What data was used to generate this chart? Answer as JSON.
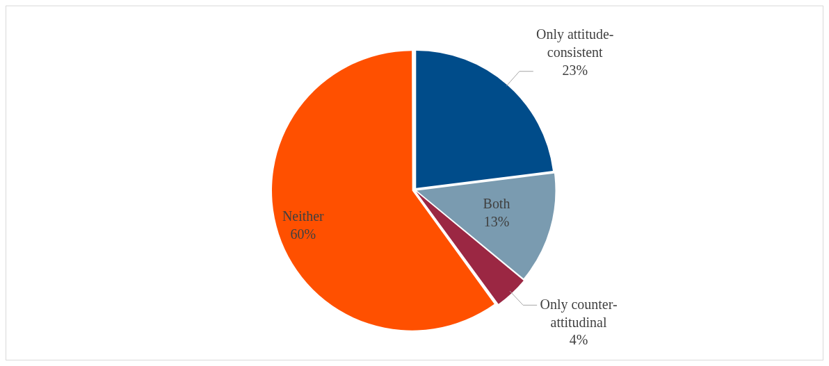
{
  "chart_data": {
    "type": "pie",
    "categories": [
      "Only attitude-consistent",
      "Both",
      "Only counter-attitudinal",
      "Neither"
    ],
    "values": [
      23,
      13,
      4,
      60
    ],
    "colors": [
      "#004c8a",
      "#7a9bb0",
      "#9b2743",
      "#ff5000"
    ],
    "value_labels": [
      "23%",
      "13%",
      "4%",
      "60%"
    ],
    "legend": false
  }
}
